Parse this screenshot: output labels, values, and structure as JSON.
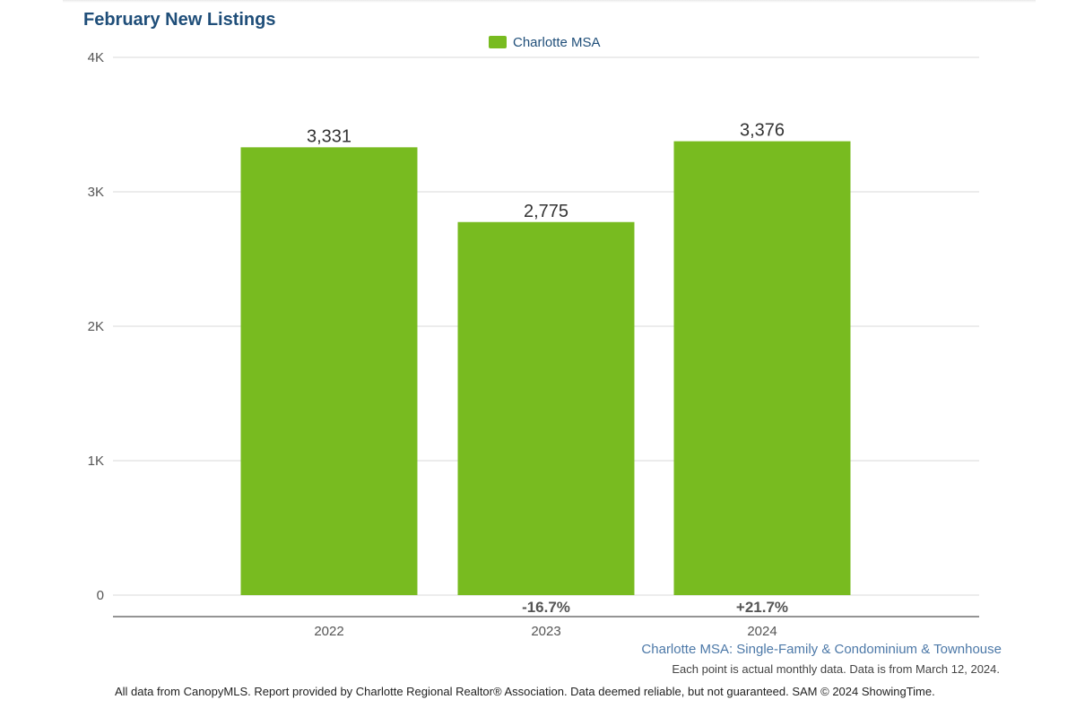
{
  "chart_data": {
    "type": "bar",
    "title": "February New Listings",
    "legend": {
      "position": "top-center",
      "entries": [
        "Charlotte MSA"
      ]
    },
    "categories": [
      "2022",
      "2023",
      "2024"
    ],
    "series": [
      {
        "name": "Charlotte MSA",
        "color": "#78bb20",
        "values": [
          3331,
          2775,
          3376
        ],
        "value_labels": [
          "3,331",
          "2,775",
          "3,376"
        ]
      }
    ],
    "change_labels": [
      "",
      "-16.7%",
      "+21.7%"
    ],
    "y_ticks": [
      {
        "value": 0,
        "label": "0"
      },
      {
        "value": 1000,
        "label": "1K"
      },
      {
        "value": 2000,
        "label": "2K"
      },
      {
        "value": 3000,
        "label": "3K"
      },
      {
        "value": 4000,
        "label": "4K"
      }
    ],
    "ylim": [
      0,
      4000
    ],
    "grid": true,
    "xlabel": "",
    "ylabel": ""
  },
  "footer": {
    "source_title": "Charlotte MSA: Single-Family & Condominium & Townhouse",
    "note": "Each point is actual monthly data. Data is from March 12, 2024.",
    "disclaimer": "All data from CanopyMLS. Report provided by Charlotte Regional Realtor® Association. Data deemed reliable, but not guaranteed. SAM © 2024 ShowingTime."
  }
}
